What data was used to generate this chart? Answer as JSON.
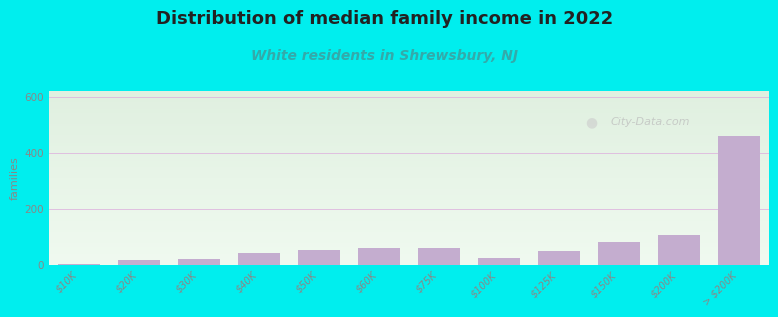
{
  "title": "Distribution of median family income in 2022",
  "subtitle": "White residents in Shrewsbury, NJ",
  "ylabel": "families",
  "categories": [
    "$10K",
    "$20K",
    "$30K",
    "$40K",
    "$50K",
    "$60K",
    "$75K",
    "$100K",
    "$125K",
    "$150K",
    "$200K",
    "> $200K"
  ],
  "values": [
    5,
    18,
    22,
    42,
    52,
    62,
    60,
    25,
    48,
    80,
    108,
    460
  ],
  "bar_color": "#C4ADCF",
  "background_outer": "#00EEEE",
  "yticks": [
    0,
    200,
    400,
    600
  ],
  "ylim": [
    0,
    620
  ],
  "title_fontsize": 13,
  "subtitle_fontsize": 10,
  "subtitle_color": "#33AAAA",
  "ylabel_color": "#888888",
  "tick_color": "#888888",
  "watermark": "City-Data.com",
  "grad_top": "#e0f0e0",
  "grad_bottom": "#f0faf0"
}
